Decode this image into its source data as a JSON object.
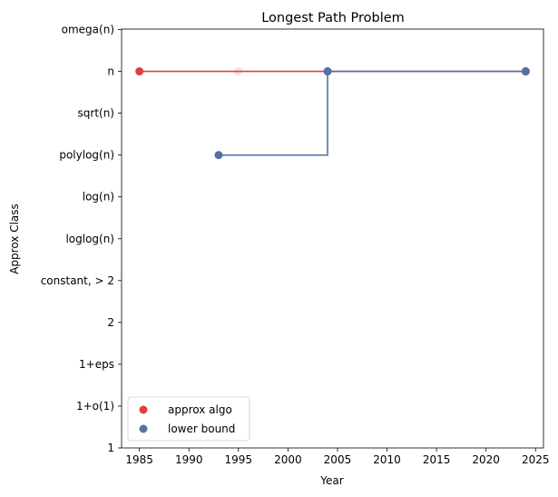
{
  "chart_data": {
    "type": "line",
    "title": "Longest Path Problem",
    "xlabel": "Year",
    "ylabel": "Approx Class",
    "xlim": [
      1983.2,
      2025.8
    ],
    "x_ticks": [
      1985,
      1990,
      1995,
      2000,
      2005,
      2010,
      2015,
      2020,
      2025
    ],
    "y_categories": [
      "1",
      "1+o(1)",
      "1+eps",
      "2",
      "constant, > 2",
      "loglog(n)",
      "log(n)",
      "polylog(n)",
      "sqrt(n)",
      "n",
      "omega(n)"
    ],
    "grid": false,
    "legend_position": "lower-left",
    "step_style": "post",
    "series": [
      {
        "name": "approx algo",
        "color": "#e04040",
        "points": [
          {
            "x": 1985,
            "y": "n"
          },
          {
            "x": 1995,
            "y": "n",
            "faded": true
          },
          {
            "x": 2004,
            "y": "n"
          },
          {
            "x": 2024,
            "y": "n"
          }
        ]
      },
      {
        "name": "lower bound",
        "color": "#5572a3",
        "points": [
          {
            "x": 1993,
            "y": "polylog(n)"
          },
          {
            "x": 2004,
            "y": "n"
          },
          {
            "x": 2024,
            "y": "n"
          }
        ]
      }
    ]
  }
}
